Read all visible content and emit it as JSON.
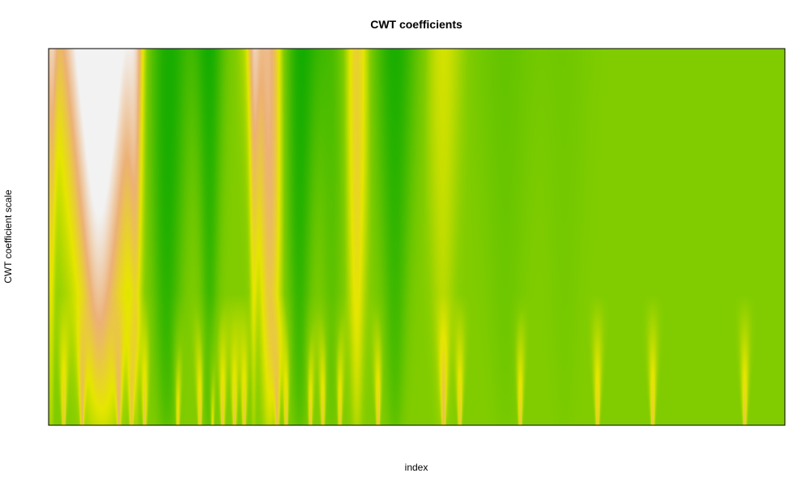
{
  "chart_data": {
    "type": "heatmap",
    "title": "CWT coefficients",
    "xlabel": "index",
    "ylabel": "CWT coefficient scale",
    "axes_ticks": "none",
    "colormap": [
      "#00A600",
      "#E6E600",
      "#ECB176",
      "#F2F2F2"
    ],
    "background_color": "#80CC00",
    "scale_range": [
      0,
      1
    ],
    "index_range": [
      0,
      1
    ],
    "vertical_bands": [
      {
        "center": 0.003,
        "width": 0.012,
        "value": 0.45,
        "cone": false
      },
      {
        "center": 0.072,
        "width": 0.105,
        "value": 0.92,
        "cone": false
      },
      {
        "center": 0.066,
        "width": 0.04,
        "value": 0.55,
        "cone": true
      },
      {
        "center": 0.118,
        "width": 0.018,
        "value": 0.4,
        "cone": false
      },
      {
        "center": 0.16,
        "width": 0.05,
        "value": -1.0,
        "cone": false
      },
      {
        "center": 0.218,
        "width": 0.03,
        "value": -0.8,
        "cone": false
      },
      {
        "center": 0.3,
        "width": 0.04,
        "value": 0.8,
        "cone": false
      },
      {
        "center": 0.278,
        "width": 0.012,
        "value": 0.4,
        "cone": false
      },
      {
        "center": 0.34,
        "width": 0.04,
        "value": -0.9,
        "cone": false
      },
      {
        "center": 0.384,
        "width": 0.034,
        "value": -0.4,
        "cone": false
      },
      {
        "center": 0.418,
        "width": 0.03,
        "value": 0.55,
        "cone": false
      },
      {
        "center": 0.47,
        "width": 0.045,
        "value": -0.8,
        "cone": false
      },
      {
        "center": 0.535,
        "width": 0.04,
        "value": 0.28,
        "cone": false
      },
      {
        "center": 0.62,
        "width": 0.06,
        "value": -0.22,
        "cone": false
      },
      {
        "center": 0.7,
        "width": 0.05,
        "value": -0.12,
        "cone": false
      }
    ],
    "fine_spikes": [
      0.02,
      0.045,
      0.095,
      0.112,
      0.13,
      0.175,
      0.205,
      0.222,
      0.236,
      0.252,
      0.265,
      0.31,
      0.322,
      0.355,
      0.372,
      0.395,
      0.447,
      0.536,
      0.558,
      0.64,
      0.745,
      0.82,
      0.945
    ]
  }
}
